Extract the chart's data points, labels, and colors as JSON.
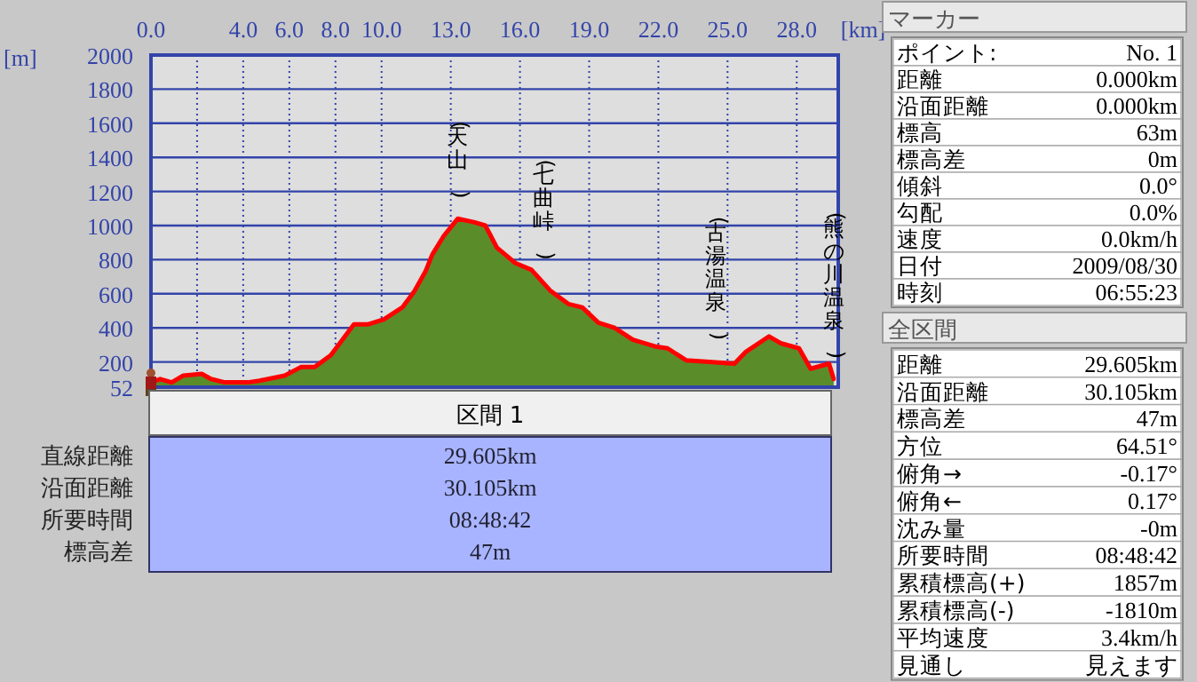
{
  "chart_data": [
    {
      "type": "line",
      "xlabel": "[km]",
      "ylabel": "[m]",
      "x": [
        0,
        0.4,
        0.9,
        1.4,
        2.2,
        2.6,
        3.2,
        4.2,
        4.7,
        5.8,
        6.5,
        7.1,
        7.8,
        8.8,
        9.4,
        10.1,
        10.9,
        11.4,
        11.9,
        12.2,
        12.7,
        13.3,
        14.0,
        14.5,
        15.0,
        15.8,
        16.5,
        17.3,
        18.1,
        18.7,
        19.4,
        20.1,
        20.9,
        21.9,
        22.4,
        23.2,
        24.2,
        25.3,
        25.8,
        26.8,
        27.3,
        28.1,
        28.6,
        29.4,
        29.6
      ],
      "series": [
        {
          "type": "area",
          "color": "#5b8c2a",
          "values": [
            80,
            100,
            80,
            120,
            130,
            100,
            80,
            80,
            90,
            120,
            170,
            170,
            240,
            420,
            420,
            450,
            520,
            610,
            730,
            830,
            940,
            1040,
            1020,
            1000,
            870,
            780,
            740,
            620,
            540,
            520,
            430,
            400,
            330,
            290,
            280,
            210,
            200,
            190,
            260,
            350,
            310,
            280,
            160,
            190,
            100
          ]
        },
        {
          "type": "line",
          "color": "#ff0000",
          "values": [
            80,
            100,
            80,
            120,
            130,
            100,
            80,
            80,
            90,
            120,
            170,
            170,
            240,
            420,
            420,
            450,
            520,
            610,
            730,
            830,
            940,
            1040,
            1020,
            1000,
            870,
            780,
            740,
            620,
            540,
            520,
            430,
            400,
            330,
            290,
            280,
            210,
            200,
            190,
            260,
            350,
            310,
            280,
            160,
            190,
            100
          ]
        }
      ],
      "xlim": [
        0,
        29.8
      ],
      "xticks": [
        {
          "value": 0,
          "label": "0.0"
        },
        {
          "value": 2,
          "label": null
        },
        {
          "value": 4,
          "label": "4.0"
        },
        {
          "value": 6,
          "label": "6.0"
        },
        {
          "value": 8,
          "label": "8.0"
        },
        {
          "value": 10,
          "label": "10.0"
        },
        {
          "value": 13,
          "label": "13.0"
        },
        {
          "value": 16,
          "label": "16.0"
        },
        {
          "value": 19,
          "label": "19.0"
        },
        {
          "value": 22,
          "label": "22.0"
        },
        {
          "value": 25,
          "label": "25.0"
        },
        {
          "value": 28,
          "label": "28.0"
        }
      ],
      "ylim": [
        52,
        2000
      ],
      "yticks": [
        52,
        200,
        400,
        600,
        800,
        1000,
        1200,
        1400,
        1600,
        1800,
        2000
      ],
      "grid": true,
      "annotations": [
        {
          "text": "(天山)",
          "x": 13.3,
          "y": 1040
        },
        {
          "text": "(七曲峠)",
          "x": 17.0,
          "y": 680
        },
        {
          "text": "(古湯温泉)",
          "x": 24.5,
          "y": 210
        },
        {
          "text": "(熊の川温泉)",
          "x": 29.6,
          "y": 100
        }
      ]
    },
    {
      "type": "other",
      "title": "区間 1",
      "annotations": [
        "直線距離",
        "29.605km",
        "沿面距離",
        "30.105km",
        "所要時間",
        "08:48:42",
        "標高差",
        "47m"
      ]
    },
    {
      "type": "other",
      "title": "マーカー",
      "annotations": [
        "ポイント:",
        "No. 1",
        "距離",
        "0.000km",
        "沿面距離",
        "0.000km",
        "標高",
        "63m",
        "標高差",
        "0m",
        "傾斜",
        "0.0°",
        "勾配",
        "0.0%",
        "速度",
        "0.0km/h",
        "日付",
        "2009/08/30",
        "時刻",
        "06:55:23"
      ]
    },
    {
      "type": "other",
      "title": "全区間",
      "annotations": [
        "距離",
        "29.605km",
        "沿面距離",
        "30.105km",
        "標高差",
        "47m",
        "方位",
        "64.51°",
        "俯角→",
        "-0.17°",
        "俯角←",
        "0.17°",
        "沈み量",
        "-0m",
        "所要時間",
        "08:48:42",
        "累積標高(+)",
        "1857m",
        "累積標高(-)",
        "-1810m",
        "平均速度",
        "3.4km/h",
        "見通し",
        "見えます"
      ]
    }
  ]
}
